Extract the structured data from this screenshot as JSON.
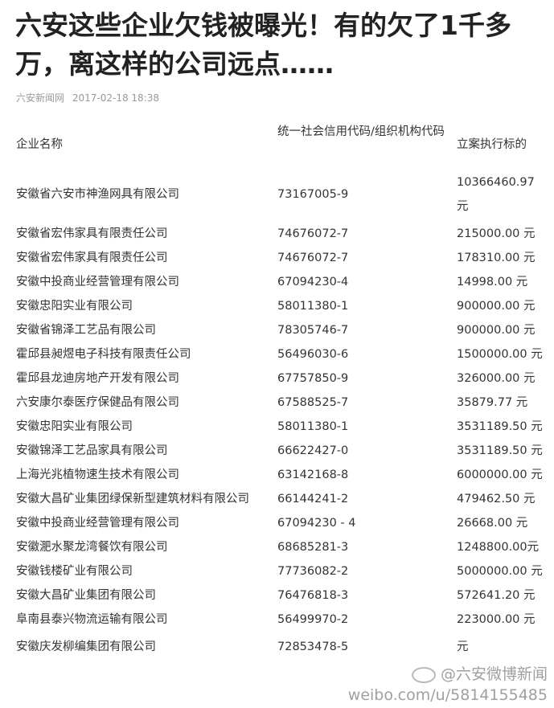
{
  "article": {
    "title": "六安这些企业欠钱被曝光！有的欠了1千多万，离这样的公司远点……",
    "source": "六安新闻网",
    "date": "2017-02-18 18:38"
  },
  "table": {
    "headers": [
      "企业名称",
      "统一社会信用代码/组织机构代码",
      "立案执行标的"
    ],
    "rows": [
      [
        "安徽省六安市神渔网具有限公司",
        "73167005-9",
        "10366460.97 元"
      ],
      [
        "安徽省宏伟家具有限责任公司",
        "74676072-7",
        "215000.00 元"
      ],
      [
        "安徽省宏伟家具有限责任公司",
        "74676072-7",
        "178310.00 元"
      ],
      [
        "安徽中投商业经营管理有限公司",
        "67094230-4",
        "14998.00 元"
      ],
      [
        "安徽忠阳实业有限公司",
        "58011380-1",
        "900000.00 元"
      ],
      [
        "安徽省锦泽工艺品有限公司",
        "78305746-7",
        "900000.00 元"
      ],
      [
        "霍邱县昶煜电子科技有限责任公司",
        "56496030-6",
        "1500000.00 元"
      ],
      [
        "霍邱县龙迪房地产开发有限公司",
        "67757850-9",
        "326000.00 元"
      ],
      [
        "六安康尔泰医疗保健品有限公司",
        "67588525-7",
        "35879.77 元"
      ],
      [
        "安徽忠阳实业有限公司",
        "58011380-1",
        "3531189.50 元"
      ],
      [
        "安徽锦泽工艺品家具有限公司",
        "66622427-0",
        "3531189.50 元"
      ],
      [
        "上海光兆植物速生技术有限公司",
        "63142168-8",
        "6000000.00 元"
      ],
      [
        "安徽大昌矿业集团绿保新型建筑材料有限公司",
        "66144241-2",
        "479462.50 元"
      ],
      [
        "安徽中投商业经营管理有限公司",
        "67094230 - 4",
        "26668.00 元"
      ],
      [
        "安徽淝水聚龙湾餐饮有限公司",
        "68685281-3",
        "1248800.00元"
      ],
      [
        "安徽钱楼矿业有限公司",
        "77736082-2",
        "5000000.00 元"
      ],
      [
        "安徽大昌矿业集团有限公司",
        "76476818-3",
        "572641.20 元"
      ],
      [
        "阜南县泰兴物流运输有限公司",
        "56499970-2",
        "223000.00 元"
      ],
      [
        "安徽庆发柳编集团有限公司",
        "72853478-5",
        "元"
      ]
    ]
  },
  "watermark": {
    "handle": "@六安微博新闻",
    "url": "weibo.com/u/5814155485"
  }
}
